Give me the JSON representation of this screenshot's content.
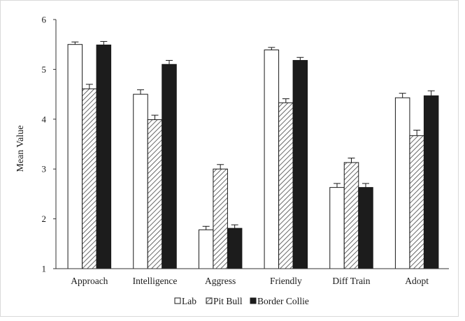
{
  "chart_data": {
    "type": "bar",
    "title": "",
    "xlabel": "",
    "ylabel": "Mean Value",
    "ylim": [
      1,
      6
    ],
    "yticks": [
      "1",
      "2",
      "3",
      "4",
      "5",
      "6"
    ],
    "categories": [
      "Approach",
      "Intelligence",
      "Aggress",
      "Friendly",
      "Diff Train",
      "Adopt"
    ],
    "series": [
      {
        "name": "Lab",
        "fill": "white",
        "values": [
          5.5,
          4.5,
          1.78,
          5.39,
          2.63,
          4.43
        ],
        "errors": [
          0.05,
          0.09,
          0.07,
          0.05,
          0.08,
          0.09
        ]
      },
      {
        "name": "Pit Bull",
        "fill": "hatched",
        "values": [
          4.61,
          3.99,
          3.0,
          4.33,
          3.13,
          3.67
        ],
        "errors": [
          0.09,
          0.09,
          0.09,
          0.08,
          0.09,
          0.11
        ]
      },
      {
        "name": "Border Collie",
        "fill": "black",
        "values": [
          5.49,
          5.1,
          1.81,
          5.18,
          2.63,
          4.47
        ],
        "errors": [
          0.07,
          0.08,
          0.07,
          0.06,
          0.08,
          0.1
        ]
      }
    ],
    "grid": false,
    "legend_position": "bottom-center",
    "colors": {
      "bar_stroke": "#1a1a1a",
      "axis": "#333333",
      "black_fill": "#1c1c1c",
      "hatch": "#444444"
    }
  }
}
